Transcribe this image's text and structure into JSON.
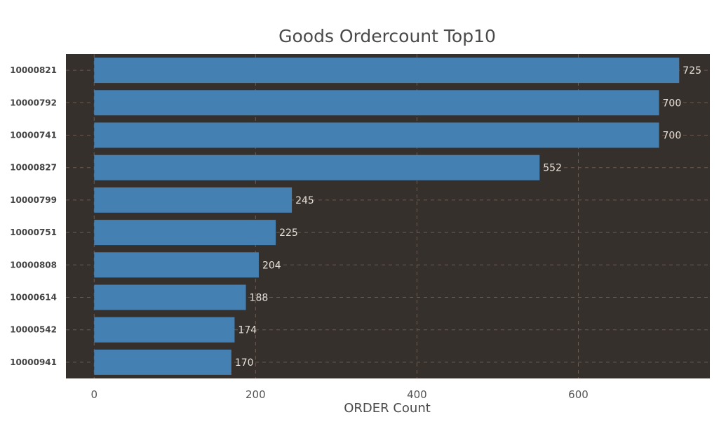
{
  "colors": {
    "plot_background": "#36302c",
    "bar": "#4580b3",
    "label": "#e6e1d8",
    "grid": "#6a5a52"
  },
  "chart_data": {
    "type": "bar",
    "orientation": "horizontal",
    "title": "Goods Ordercount Top10",
    "xlabel": "ORDER Count",
    "ylabel": "",
    "categories": [
      "10000821",
      "10000792",
      "10000741",
      "10000827",
      "10000799",
      "10000751",
      "10000808",
      "10000614",
      "10000542",
      "10000941"
    ],
    "values": [
      725,
      700,
      700,
      552,
      245,
      225,
      204,
      188,
      174,
      170
    ],
    "xlim": [
      -35,
      763
    ],
    "xticks": [
      0,
      200,
      400,
      600
    ],
    "grid": true,
    "legend": "none"
  }
}
